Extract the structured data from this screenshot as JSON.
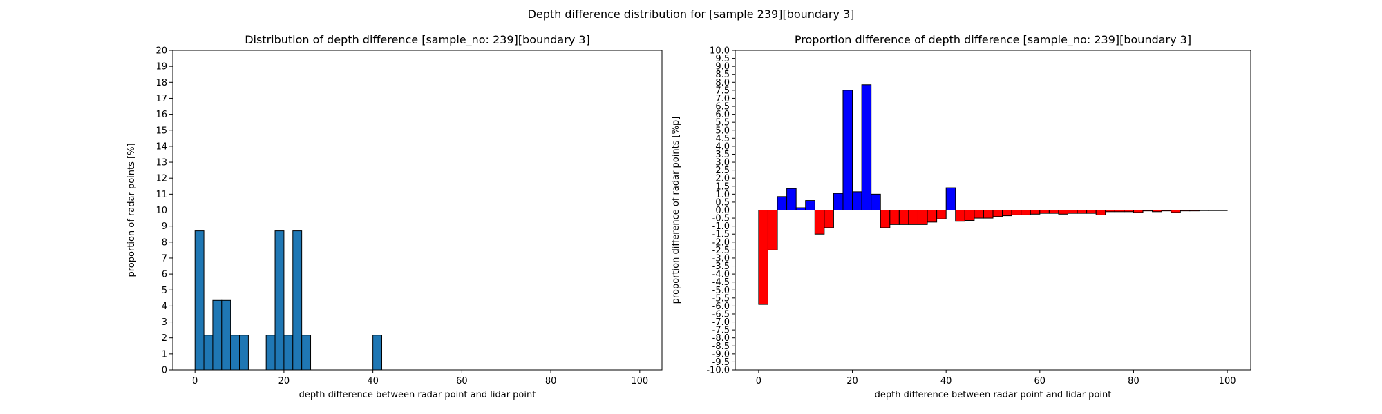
{
  "figure": {
    "suptitle": "Depth difference distribution for [sample 239][boundary 3]"
  },
  "chart_data": [
    {
      "type": "bar",
      "title": "Distribution of depth difference [sample_no: 239][boundary 3]",
      "xlabel": "depth difference between radar point and lidar point",
      "ylabel": "proportion of radar points [%]",
      "xlim": [
        -5,
        105
      ],
      "ylim": [
        0,
        20
      ],
      "xticks": [
        0,
        20,
        40,
        60,
        80,
        100
      ],
      "yticks": [
        0,
        1,
        2,
        3,
        4,
        5,
        6,
        7,
        8,
        9,
        10,
        11,
        12,
        13,
        14,
        15,
        16,
        17,
        18,
        19,
        20
      ],
      "bin_width": 2,
      "colors": {
        "bar": "#1f77b4",
        "edge": "#000000"
      },
      "bins": [
        {
          "x": 0,
          "value": 8.7
        },
        {
          "x": 2,
          "value": 2.17
        },
        {
          "x": 4,
          "value": 4.35
        },
        {
          "x": 6,
          "value": 4.35
        },
        {
          "x": 8,
          "value": 2.17
        },
        {
          "x": 10,
          "value": 2.17
        },
        {
          "x": 16,
          "value": 2.17
        },
        {
          "x": 18,
          "value": 8.7
        },
        {
          "x": 20,
          "value": 2.17
        },
        {
          "x": 22,
          "value": 8.7
        },
        {
          "x": 24,
          "value": 2.17
        },
        {
          "x": 40,
          "value": 2.17
        }
      ]
    },
    {
      "type": "bar",
      "title": "Proportion difference of depth difference [sample_no: 239][boundary 3]",
      "xlabel": "depth difference between radar point and lidar point",
      "ylabel": "proportion difference of radar points [%p]",
      "xlim": [
        -5,
        105
      ],
      "ylim": [
        -10,
        10
      ],
      "xticks": [
        0,
        20,
        40,
        60,
        80,
        100
      ],
      "yticks": [
        -10.0,
        -9.5,
        -9.0,
        -8.5,
        -8.0,
        -7.5,
        -7.0,
        -6.5,
        -6.0,
        -5.5,
        -5.0,
        -4.5,
        -4.0,
        -3.5,
        -3.0,
        -2.5,
        -2.0,
        -1.5,
        -1.0,
        -0.5,
        0.0,
        0.5,
        1.0,
        1.5,
        2.0,
        2.5,
        3.0,
        3.5,
        4.0,
        4.5,
        5.0,
        5.5,
        6.0,
        6.5,
        7.0,
        7.5,
        8.0,
        8.5,
        9.0,
        9.5,
        10.0
      ],
      "bin_width": 2,
      "colors": {
        "positive": "#0000ff",
        "negative": "#ff0000",
        "edge": "#000000"
      },
      "bins": [
        {
          "x": 0,
          "value": -5.9
        },
        {
          "x": 2,
          "value": -2.5
        },
        {
          "x": 4,
          "value": 0.85
        },
        {
          "x": 6,
          "value": 1.35
        },
        {
          "x": 8,
          "value": 0.15
        },
        {
          "x": 10,
          "value": 0.6
        },
        {
          "x": 12,
          "value": -1.5
        },
        {
          "x": 14,
          "value": -1.1
        },
        {
          "x": 16,
          "value": 1.05
        },
        {
          "x": 18,
          "value": 7.5
        },
        {
          "x": 20,
          "value": 1.15
        },
        {
          "x": 22,
          "value": 7.85
        },
        {
          "x": 24,
          "value": 1.0
        },
        {
          "x": 26,
          "value": -1.1
        },
        {
          "x": 28,
          "value": -0.9
        },
        {
          "x": 30,
          "value": -0.9
        },
        {
          "x": 32,
          "value": -0.9
        },
        {
          "x": 34,
          "value": -0.9
        },
        {
          "x": 36,
          "value": -0.75
        },
        {
          "x": 38,
          "value": -0.55
        },
        {
          "x": 40,
          "value": 1.4
        },
        {
          "x": 42,
          "value": -0.7
        },
        {
          "x": 44,
          "value": -0.65
        },
        {
          "x": 46,
          "value": -0.5
        },
        {
          "x": 48,
          "value": -0.5
        },
        {
          "x": 50,
          "value": -0.4
        },
        {
          "x": 52,
          "value": -0.35
        },
        {
          "x": 54,
          "value": -0.3
        },
        {
          "x": 56,
          "value": -0.3
        },
        {
          "x": 58,
          "value": -0.25
        },
        {
          "x": 60,
          "value": -0.2
        },
        {
          "x": 62,
          "value": -0.2
        },
        {
          "x": 64,
          "value": -0.25
        },
        {
          "x": 66,
          "value": -0.2
        },
        {
          "x": 68,
          "value": -0.2
        },
        {
          "x": 70,
          "value": -0.2
        },
        {
          "x": 72,
          "value": -0.3
        },
        {
          "x": 74,
          "value": -0.1
        },
        {
          "x": 76,
          "value": -0.1
        },
        {
          "x": 78,
          "value": -0.1
        },
        {
          "x": 80,
          "value": -0.15
        },
        {
          "x": 82,
          "value": -0.05
        },
        {
          "x": 84,
          "value": -0.1
        },
        {
          "x": 86,
          "value": -0.05
        },
        {
          "x": 88,
          "value": -0.15
        },
        {
          "x": 90,
          "value": -0.05
        },
        {
          "x": 92,
          "value": -0.05
        },
        {
          "x": 94,
          "value": -0.03
        },
        {
          "x": 96,
          "value": -0.03
        },
        {
          "x": 98,
          "value": -0.03
        }
      ]
    }
  ]
}
